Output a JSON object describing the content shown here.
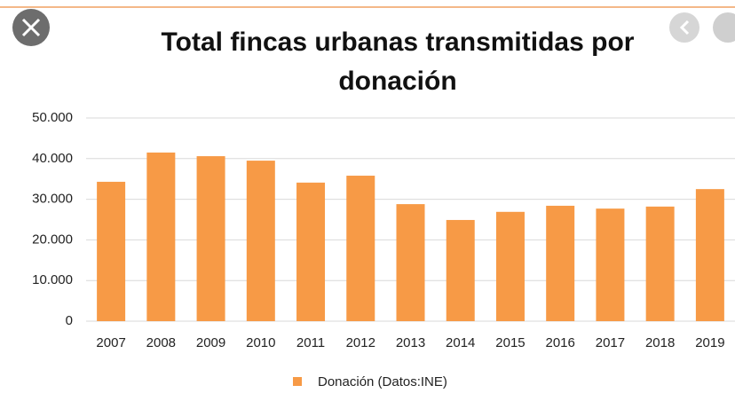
{
  "chart_data": {
    "type": "bar",
    "title": "Total fincas urbanas transmitidas por donación",
    "categories": [
      "2007",
      "2008",
      "2009",
      "2010",
      "2011",
      "2012",
      "2013",
      "2014",
      "2015",
      "2016",
      "2017",
      "2018",
      "2019"
    ],
    "series": [
      {
        "name": "Donación (Datos:INE)",
        "color": "#f79a46",
        "values": [
          34300,
          41500,
          40600,
          39500,
          34100,
          35800,
          28800,
          24900,
          26900,
          28400,
          27700,
          28200,
          32500
        ]
      }
    ],
    "ylim": [
      0,
      50000
    ],
    "yticks": [
      0,
      {
        "value": 10000,
        "label": "10.000"
      },
      {
        "value": 20000,
        "label": "20.000"
      },
      {
        "value": 30000,
        "label": "30.000"
      },
      {
        "value": 40000,
        "label": "40.000"
      },
      {
        "value": 50000,
        "label": "50.000"
      }
    ],
    "grid": true,
    "legend": "bottom"
  }
}
